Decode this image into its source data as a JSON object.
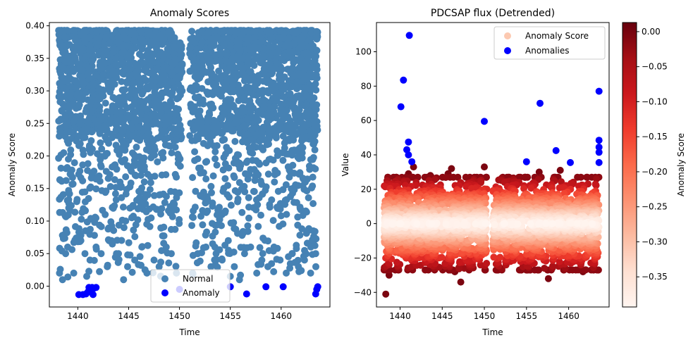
{
  "chart_data": [
    {
      "type": "scatter",
      "title": "Anomaly Scores",
      "xlabel": "Time",
      "ylabel": "Anomaly Score",
      "xlim": [
        1437.2,
        1464.8
      ],
      "ylim": [
        -0.032,
        0.405
      ],
      "xticks": [
        1440,
        1445,
        1450,
        1455,
        1460
      ],
      "xtick_labels": [
        "1440",
        "1445",
        "1450",
        "1455",
        "1460"
      ],
      "yticks": [
        0.0,
        0.05,
        0.1,
        0.15,
        0.2,
        0.25,
        0.3,
        0.35,
        0.4
      ],
      "ytick_labels": [
        "0.00",
        "0.05",
        "0.10",
        "0.15",
        "0.20",
        "0.25",
        "0.30",
        "0.35",
        "0.40"
      ],
      "legend_position": "bottom-center",
      "grid": false,
      "series": [
        {
          "name": "Normal",
          "color": "#4682b4",
          "x_range": [
            1438.1,
            1463.6
          ],
          "y_range": [
            0.0,
            0.393
          ],
          "gap": [
            1450.3,
            1451.0
          ],
          "sample_points": [
            [
              1438.2,
              0.02
            ],
            [
              1438.5,
              0.01
            ],
            [
              1438.8,
              0.05
            ],
            [
              1439.0,
              0.06
            ],
            [
              1439.6,
              0.02
            ],
            [
              1440.3,
              0.07
            ],
            [
              1440.7,
              0.05
            ],
            [
              1441.2,
              0.04
            ],
            [
              1441.8,
              0.06
            ],
            [
              1442.3,
              0.05
            ],
            [
              1442.9,
              0.03
            ],
            [
              1443.3,
              0.07
            ],
            [
              1443.8,
              0.05
            ],
            [
              1444.5,
              0.01
            ],
            [
              1444.9,
              0.03
            ],
            [
              1445.6,
              0.04
            ],
            [
              1446.3,
              0.06
            ],
            [
              1446.8,
              0.02
            ],
            [
              1447.5,
              0.04
            ],
            [
              1448.0,
              0.03
            ],
            [
              1448.7,
              0.06
            ],
            [
              1449.2,
              0.05
            ],
            [
              1449.7,
              0.02
            ],
            [
              1451.3,
              0.02
            ],
            [
              1451.8,
              0.05
            ],
            [
              1452.6,
              0.06
            ],
            [
              1453.1,
              0.03
            ],
            [
              1453.6,
              0.05
            ],
            [
              1454.2,
              0.04
            ],
            [
              1454.8,
              0.07
            ],
            [
              1455.4,
              0.03
            ],
            [
              1455.9,
              0.01
            ],
            [
              1456.4,
              0.05
            ],
            [
              1457.0,
              0.06
            ],
            [
              1457.6,
              0.02
            ],
            [
              1458.1,
              0.04
            ],
            [
              1458.7,
              0.03
            ],
            [
              1459.3,
              0.06
            ],
            [
              1459.9,
              0.04
            ],
            [
              1460.5,
              0.02
            ],
            [
              1461.1,
              0.05
            ],
            [
              1461.7,
              0.03
            ],
            [
              1462.3,
              0.04
            ],
            [
              1462.9,
              0.02
            ],
            [
              1463.4,
              0.05
            ]
          ]
        },
        {
          "name": "Anomaly",
          "color": "#0000ff",
          "points": [
            [
              1440.1,
              -0.013
            ],
            [
              1440.5,
              -0.013
            ],
            [
              1440.8,
              -0.012
            ],
            [
              1441.0,
              -0.009
            ],
            [
              1441.1,
              -0.002
            ],
            [
              1441.2,
              -0.005
            ],
            [
              1441.4,
              -0.002
            ],
            [
              1441.5,
              -0.013
            ],
            [
              1441.6,
              -0.003
            ],
            [
              1441.8,
              -0.002
            ],
            [
              1450.0,
              -0.005
            ],
            [
              1455.0,
              -0.001
            ],
            [
              1456.6,
              -0.012
            ],
            [
              1458.5,
              -0.001
            ],
            [
              1460.2,
              -0.001
            ],
            [
              1463.4,
              -0.012
            ],
            [
              1463.5,
              -0.005
            ],
            [
              1463.6,
              -0.001
            ]
          ]
        }
      ]
    },
    {
      "type": "scatter",
      "title": "PDCSAP flux (Detrended)",
      "xlabel": "Time",
      "ylabel": "Value",
      "xlim": [
        1437.2,
        1464.8
      ],
      "ylim": [
        -48.5,
        117.0
      ],
      "xticks": [
        1440,
        1445,
        1450,
        1455,
        1460
      ],
      "xtick_labels": [
        "1440",
        "1445",
        "1450",
        "1455",
        "1460"
      ],
      "yticks": [
        -40,
        -20,
        0,
        20,
        40,
        60,
        80,
        100
      ],
      "ytick_labels": [
        "−40",
        "−20",
        "0",
        "20",
        "40",
        "60",
        "80",
        "100"
      ],
      "legend_position": "top-right",
      "grid": false,
      "colormap": "Reds",
      "colorbar": {
        "label": "Anomaly Score",
        "range": [
          -0.393,
          0.013
        ],
        "ticks": [
          -0.35,
          -0.3,
          -0.25,
          -0.2,
          -0.15,
          -0.1,
          -0.05,
          0.0
        ],
        "tick_labels": [
          "−0.35",
          "−0.30",
          "−0.25",
          "−0.20",
          "−0.15",
          "−0.10",
          "−0.05",
          "0.00"
        ]
      },
      "series": [
        {
          "name": "Anomaly Score",
          "legend_color": "#fcc9b1",
          "x_range": [
            1438.1,
            1463.6
          ],
          "y_range": [
            -41.0,
            33.0
          ],
          "gap": [
            1450.3,
            1451.0
          ],
          "sample_points": [
            [
              1438.3,
              -41.0
            ],
            [
              1438.3,
              -27.0
            ],
            [
              1438.7,
              -30.0
            ],
            [
              1441.4,
              -25.0
            ],
            [
              1441.9,
              -24.0
            ],
            [
              1444.1,
              -26.0
            ],
            [
              1446.5,
              -28.0
            ],
            [
              1447.2,
              -34.0
            ],
            [
              1448.6,
              -24.0
            ],
            [
              1450.0,
              33.0
            ],
            [
              1443.6,
              28.0
            ],
            [
              1445.7,
              29.0
            ],
            [
              1446.1,
              32.0
            ],
            [
              1441.0,
              29.0
            ],
            [
              1441.6,
              33.0
            ],
            [
              1452.4,
              24.0
            ],
            [
              1454.9,
              27.0
            ],
            [
              1456.5,
              30.0
            ],
            [
              1457.6,
              -32.0
            ],
            [
              1459.0,
              31.0
            ],
            [
              1459.6,
              -26.0
            ],
            [
              1461.7,
              -28.0
            ],
            [
              1463.3,
              26.0
            ],
            [
              1463.5,
              -27.0
            ]
          ]
        },
        {
          "name": "Anomalies",
          "color": "#0000ff",
          "points": [
            [
              1440.1,
              68.0
            ],
            [
              1440.4,
              83.5
            ],
            [
              1440.8,
              43.0
            ],
            [
              1441.0,
              47.5
            ],
            [
              1441.1,
              109.5
            ],
            [
              1441.0,
              40.0
            ],
            [
              1441.4,
              36.0
            ],
            [
              1450.0,
              59.5
            ],
            [
              1455.0,
              36.0
            ],
            [
              1456.6,
              70.0
            ],
            [
              1458.5,
              42.5
            ],
            [
              1460.2,
              35.5
            ],
            [
              1463.6,
              77.0
            ],
            [
              1463.6,
              48.5
            ],
            [
              1463.6,
              44.5
            ],
            [
              1463.6,
              41.5
            ],
            [
              1463.6,
              35.5
            ]
          ]
        }
      ]
    }
  ]
}
